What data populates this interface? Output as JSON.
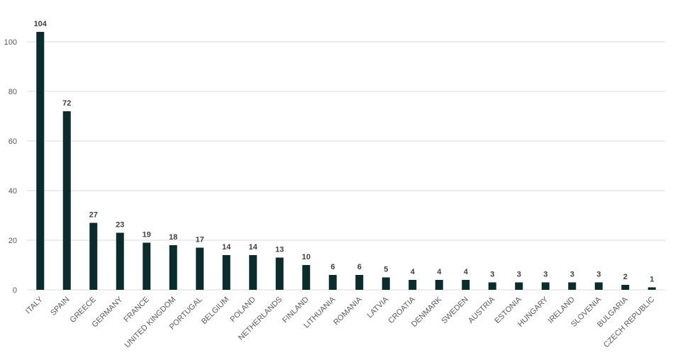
{
  "chart_data": {
    "type": "bar",
    "categories": [
      "ITALY",
      "SPAIN",
      "GREECE",
      "GERMANY",
      "FRANCE",
      "UNITED KINGDOM",
      "PORTUGAL",
      "BELGIUM",
      "POLAND",
      "NETHERLANDS",
      "FINLAND",
      "LITHUANIA",
      "ROMANIA",
      "LATVIA",
      "CROATIA",
      "DENMARK",
      "SWEDEN",
      "AUSTRIA",
      "ESTONIA",
      "HUNGARY",
      "IRELAND",
      "SLOVENIA",
      "BULGARIA",
      "CZECH REPUBLIC"
    ],
    "values": [
      104,
      72,
      27,
      23,
      19,
      18,
      17,
      14,
      14,
      13,
      10,
      6,
      6,
      5,
      4,
      4,
      4,
      3,
      3,
      3,
      3,
      3,
      2,
      1
    ],
    "color": "#0b2b2c",
    "ylim": [
      0,
      110
    ],
    "yticks": [
      0,
      20,
      40,
      60,
      80,
      100
    ],
    "grid": true
  }
}
